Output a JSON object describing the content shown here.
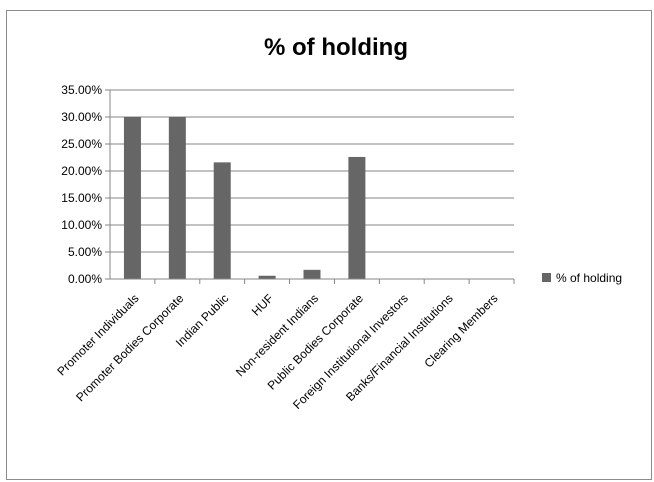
{
  "chart_data": {
    "type": "bar",
    "title": "% of holding",
    "categories": [
      "Promoter Individuals",
      "Promoter Bodies Corporate",
      "Indian Public",
      "HUF",
      "Non-resident Indians",
      "Public Bodies Corporate",
      "Foreign Institutional  Investors",
      "Banks/Financial Institutions",
      "Clearing Members"
    ],
    "series": [
      {
        "name": "% of holding",
        "values": [
          30.0,
          30.0,
          21.6,
          0.6,
          1.7,
          22.6,
          0.0,
          0.0,
          0.0
        ],
        "color": "#666666"
      }
    ],
    "y_ticks": [
      "0.00%",
      "5.00%",
      "10.00%",
      "15.00%",
      "20.00%",
      "25.00%",
      "30.00%",
      "35.00%"
    ],
    "ylim": [
      0,
      35
    ],
    "grid": true,
    "legend_position": "right"
  }
}
